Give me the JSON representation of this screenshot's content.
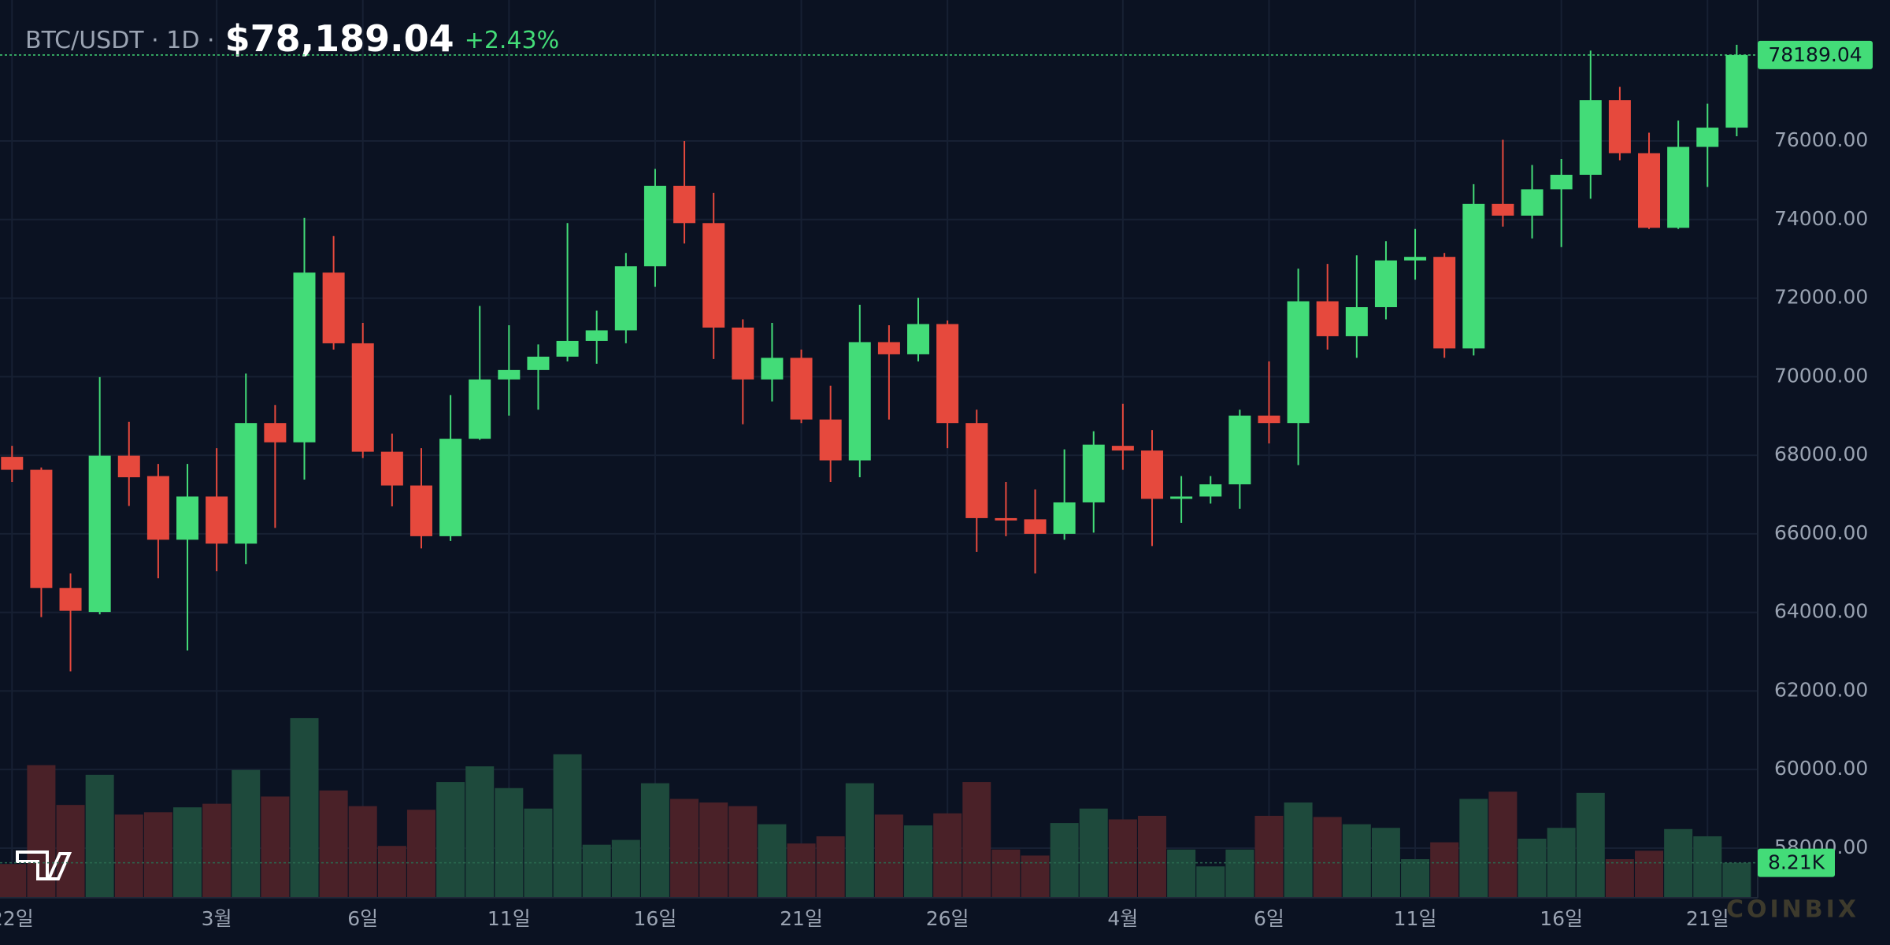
{
  "chart_data": {
    "type": "candlestick",
    "symbol": "BTC/USDT · 1D ·",
    "price": "$78,189.04",
    "change": "+2.43%",
    "watermark": "COINBIX",
    "categories": [
      "22일",
      null,
      null,
      null,
      null,
      null,
      null,
      "3월",
      null,
      null,
      null,
      null,
      "6일",
      null,
      null,
      null,
      null,
      "11일",
      null,
      null,
      null,
      null,
      "16일",
      null,
      null,
      null,
      null,
      "21일",
      null,
      null,
      null,
      null,
      "26일",
      null,
      null,
      null,
      null,
      null,
      "4월",
      null,
      null,
      null,
      null,
      "6일",
      null,
      null,
      null,
      null,
      "11일",
      null,
      null,
      null,
      null,
      "16일",
      null,
      null,
      null,
      null,
      "21일",
      null
    ],
    "open": [
      67960,
      67630,
      64620,
      64010,
      67990,
      67470,
      65850,
      66950,
      65750,
      68820,
      68330,
      72650,
      70850,
      68090,
      67230,
      65940,
      68420,
      69930,
      70170,
      70510,
      70910,
      71180,
      72810,
      74860,
      73910,
      71250,
      69930,
      70480,
      68910,
      67870,
      70880,
      70570,
      71340,
      68820,
      66400,
      66370,
      66000,
      66800,
      68240,
      68120,
      66890,
      66950,
      67260,
      69010,
      68820,
      71920,
      71030,
      71770,
      72960,
      73050,
      70720,
      74400,
      74100,
      74770,
      75140,
      77040,
      75690,
      73790,
      75850,
      76340
    ],
    "high": [
      68240,
      67690,
      64990,
      69990,
      68850,
      67780,
      67780,
      68180,
      70080,
      69280,
      74040,
      73580,
      71370,
      68550,
      68180,
      69530,
      71800,
      71310,
      70820,
      73910,
      71680,
      73150,
      75290,
      76000,
      74680,
      71460,
      71370,
      70690,
      69770,
      71830,
      71310,
      72010,
      71430,
      69160,
      67320,
      67130,
      68150,
      68610,
      69310,
      68640,
      67470,
      67470,
      69160,
      70390,
      72750,
      72870,
      73090,
      73450,
      73760,
      73150,
      74900,
      76030,
      75390,
      75540,
      78300,
      77380,
      76210,
      76520,
      76950,
      78450
    ],
    "low": [
      67320,
      63880,
      62500,
      63950,
      66710,
      64870,
      63030,
      65050,
      65230,
      66150,
      67380,
      70690,
      67930,
      66700,
      65630,
      65820,
      68390,
      69010,
      69160,
      70390,
      70330,
      70850,
      72290,
      73390,
      70450,
      68790,
      69370,
      68820,
      67320,
      67440,
      68910,
      70390,
      68180,
      65540,
      65940,
      64990,
      65850,
      66030,
      67630,
      65690,
      66280,
      66770,
      66640,
      68300,
      67750,
      70690,
      70480,
      71460,
      72470,
      70480,
      70540,
      73820,
      73520,
      73300,
      74530,
      75510,
      73760,
      73760,
      74830,
      76120
    ],
    "close": [
      67630,
      64620,
      64040,
      67990,
      67440,
      65850,
      66950,
      65750,
      68820,
      68330,
      72650,
      70850,
      68090,
      67230,
      65940,
      68420,
      69930,
      70170,
      70510,
      70910,
      71180,
      72810,
      74860,
      73910,
      71250,
      69930,
      70480,
      68910,
      67870,
      70880,
      70570,
      71340,
      68820,
      66400,
      66340,
      66000,
      66800,
      68270,
      68120,
      66890,
      66950,
      67260,
      69010,
      68820,
      71920,
      71030,
      71770,
      72960,
      73050,
      70720,
      74400,
      74100,
      74770,
      75140,
      77040,
      75690,
      73790,
      75850,
      76340,
      78189.04
    ],
    "volume": [
      7920,
      31130,
      21790,
      28870,
      19530,
      20090,
      21230,
      22070,
      30000,
      23770,
      42170,
      25190,
      21510,
      12170,
      20660,
      27170,
      30850,
      25750,
      20940,
      33680,
      12450,
      13580,
      26890,
      23210,
      22360,
      21510,
      17260,
      12740,
      14430,
      26890,
      19530,
      16980,
      19810,
      27170,
      11320,
      9910,
      17550,
      20940,
      18400,
      19240,
      11320,
      7360,
      11320,
      19240,
      22360,
      18960,
      17260,
      16410,
      9060,
      13020,
      23210,
      24900,
      13870,
      16410,
      24620,
      9060,
      11040,
      16130,
      14430,
      8210
    ],
    "volume_last_label": "8.21K",
    "volume_lim": [
      0,
      45300
    ],
    "up_color": "#43dc78",
    "down_color": "#e6493d",
    "up_volume_color": "#1e4a3c",
    "down_volume_color": "#4a2128",
    "ylim": [
      56736,
      79589
    ],
    "yticks": [
      {
        "value": 58000,
        "label": "58000.00"
      },
      {
        "value": 60000,
        "label": "60000.00"
      },
      {
        "value": 62000,
        "label": "62000.00"
      },
      {
        "value": 64000,
        "label": "64000.00"
      },
      {
        "value": 66000,
        "label": "66000.00"
      },
      {
        "value": 68000,
        "label": "68000.00"
      },
      {
        "value": 70000,
        "label": "70000.00"
      },
      {
        "value": 72000,
        "label": "72000.00"
      },
      {
        "value": 74000,
        "label": "74000.00"
      },
      {
        "value": 76000,
        "label": "76000.00"
      }
    ],
    "grid": true
  }
}
